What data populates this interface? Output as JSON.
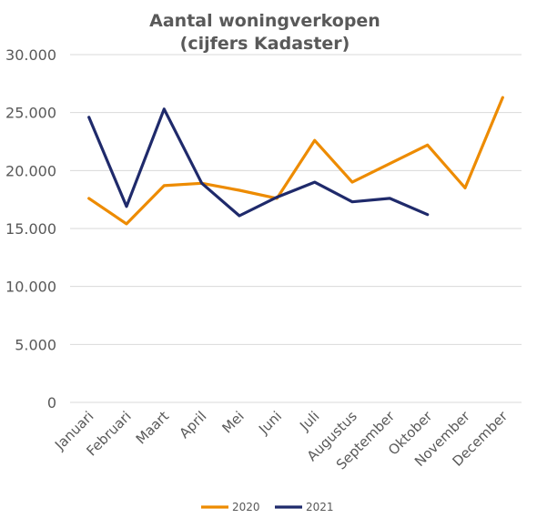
{
  "chart_data": {
    "type": "line",
    "title_lines": [
      "Aantal woningverkopen",
      "(cijfers Kadaster)"
    ],
    "categories": [
      "Januari",
      "Februari",
      "Maart",
      "April",
      "Mei",
      "Juni",
      "Juli",
      "Augustus",
      "September",
      "Oktober",
      "November",
      "December"
    ],
    "y_ticks": [
      0,
      5000,
      10000,
      15000,
      20000,
      25000,
      30000
    ],
    "y_tick_labels": [
      "0",
      "5.000",
      "10.000",
      "15.000",
      "20.000",
      "25.000",
      "30.000"
    ],
    "ylim": [
      0,
      30000
    ],
    "grid": true,
    "legend_position": "bottom",
    "series": [
      {
        "name": "2020",
        "color": "#ed8b00",
        "values": [
          17600,
          15400,
          18700,
          18900,
          18300,
          17600,
          22600,
          19000,
          20600,
          22200,
          18500,
          26300
        ]
      },
      {
        "name": "2021",
        "color": "#1f2a6b",
        "values": [
          24600,
          16900,
          25300,
          18900,
          16100,
          17700,
          19000,
          17300,
          17600,
          16200,
          null,
          null
        ]
      }
    ]
  }
}
